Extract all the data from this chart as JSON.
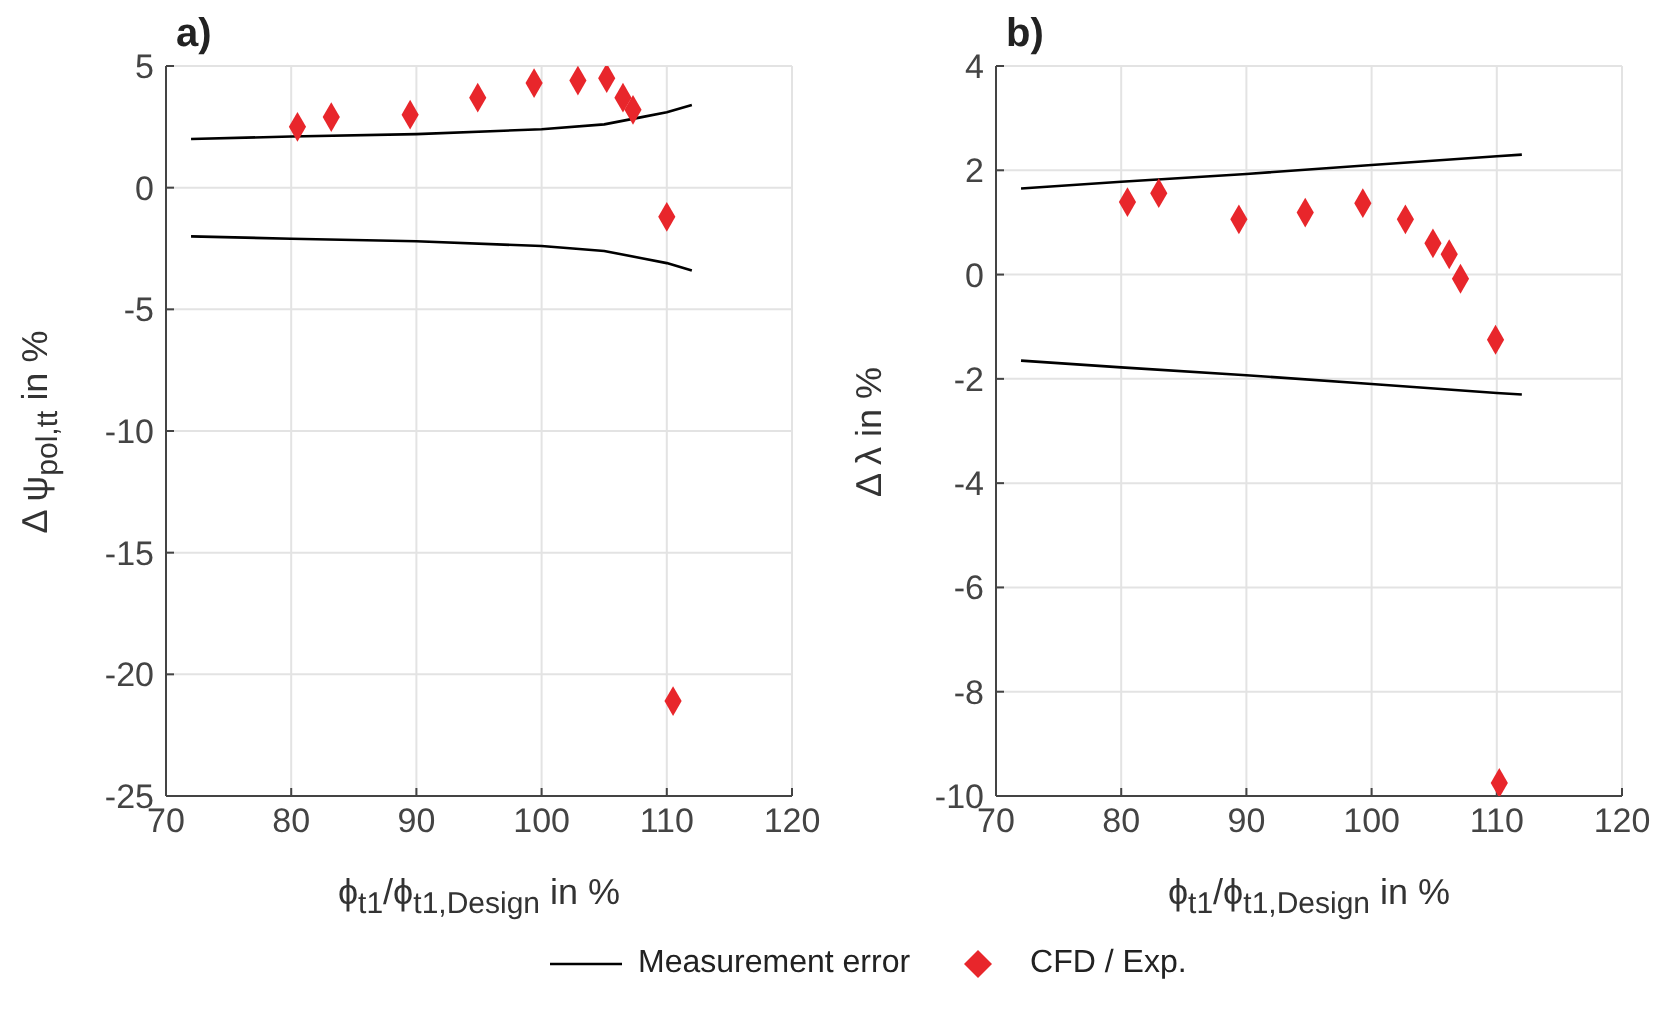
{
  "chart_data": [
    {
      "type": "scatter",
      "title": "a)",
      "xlabel": "ϕ$_{t1}$/ϕ$_{t1,Design}$ in %",
      "ylabel": "Δ ψ$_{pol,tt}$ in %",
      "xlim": [
        70,
        120
      ],
      "xticks": [
        70,
        80,
        90,
        100,
        110,
        120
      ],
      "ylim": [
        -25,
        5
      ],
      "yticks": [
        -25,
        -20,
        -15,
        -10,
        -5,
        0,
        5
      ],
      "grid": true,
      "series": [
        {
          "type": "line",
          "color": "#000000",
          "marker": "none",
          "line_style": "solid",
          "x": [
            72,
            80,
            90,
            100,
            105,
            108,
            110,
            112
          ],
          "values": [
            2.0,
            2.1,
            2.2,
            2.4,
            2.6,
            2.9,
            3.1,
            3.4
          ]
        },
        {
          "type": "line",
          "color": "#000000",
          "marker": "none",
          "line_style": "solid",
          "x": [
            72,
            80,
            90,
            100,
            105,
            108,
            110,
            112
          ],
          "values": [
            -2.0,
            -2.1,
            -2.2,
            -2.4,
            -2.6,
            -2.9,
            -3.1,
            -3.4
          ]
        },
        {
          "color": "#e8262b",
          "marker": "diamond",
          "x": [
            80.5,
            83.2,
            89.5,
            94.9,
            99.4,
            102.9,
            105.2,
            106.5,
            107.3,
            110.0,
            110.5
          ],
          "values": [
            2.5,
            2.9,
            3.0,
            3.7,
            4.3,
            4.4,
            4.5,
            3.7,
            3.2,
            -1.2,
            -21.1
          ]
        }
      ]
    },
    {
      "type": "scatter",
      "title": "b)",
      "xlabel": "ϕ$_{t1}$/ϕ$_{t1,Design}$ in %",
      "ylabel": "Δ λ in %",
      "xlim": [
        70,
        120
      ],
      "xticks": [
        70,
        80,
        90,
        100,
        110,
        120
      ],
      "ylim": [
        -10,
        4
      ],
      "yticks": [
        -10,
        -8,
        -6,
        -4,
        -2,
        0,
        2,
        4
      ],
      "grid": true,
      "legend": "bottom",
      "series": [
        {
          "type": "line",
          "name": "Measurement error",
          "color": "#000000",
          "marker": "none",
          "line_style": "solid",
          "x": [
            72,
            80,
            90,
            100,
            110,
            112
          ],
          "values": [
            1.65,
            1.78,
            1.93,
            2.1,
            2.27,
            2.3
          ]
        },
        {
          "type": "line",
          "color": "#000000",
          "marker": "none",
          "line_style": "solid",
          "x": [
            72,
            80,
            90,
            100,
            110,
            112
          ],
          "values": [
            -1.65,
            -1.78,
            -1.93,
            -2.1,
            -2.27,
            -2.3
          ]
        },
        {
          "name": "CFD / Exp.",
          "color": "#e8262b",
          "marker": "diamond",
          "x": [
            80.5,
            83.0,
            89.4,
            94.7,
            99.3,
            102.7,
            104.9,
            106.2,
            107.1,
            109.9,
            110.2
          ],
          "values": [
            1.39,
            1.56,
            1.06,
            1.19,
            1.37,
            1.06,
            0.6,
            0.39,
            -0.08,
            -1.25,
            -9.75
          ]
        }
      ]
    }
  ]
}
